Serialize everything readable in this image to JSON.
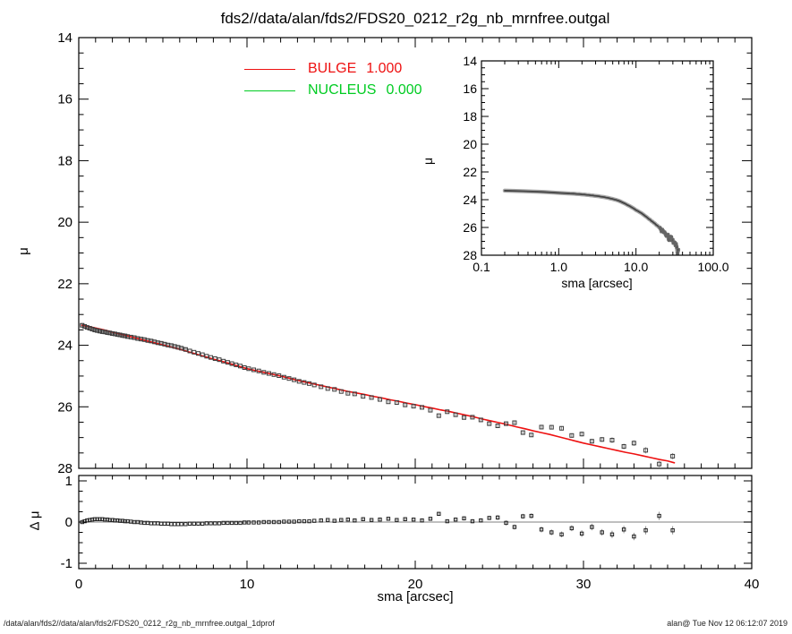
{
  "title": "fds2//data/alan/fds2/FDS20_0212_r2g_nb_mrnfree.outgal",
  "footer": {
    "left": "/data/alan/fds2//data/alan/fds2/FDS20_0212_r2g_nb_mrnfree.outgal_1dprof",
    "right": "alan@  Tue Nov 12 06:12:07 2019"
  },
  "colors": {
    "bulge_line": "#ee1111",
    "nucleus_line": "#00cc22",
    "data_marker": "#3c3c3c",
    "error_bar": "#8f8f8f",
    "fuzz_band": "#b5b5b5",
    "inset_core": "#444444",
    "zero_line": "#999999",
    "axis": "#000000"
  },
  "legend": [
    {
      "label": "BULGE",
      "value": "1.000",
      "color": "#ee1111"
    },
    {
      "label": "NUCLEUS",
      "value": "0.000",
      "color": "#00cc22"
    }
  ],
  "chart_data": {
    "type": "scatter",
    "panels": [
      {
        "id": "main",
        "ylabel": "μ",
        "xlim": [
          0,
          40
        ],
        "ylim": [
          28,
          14
        ],
        "yticks": [
          14,
          16,
          18,
          20,
          22,
          24,
          26,
          28
        ],
        "y_minor": 0.5,
        "xticks": [
          0,
          10,
          20,
          30,
          40
        ],
        "x_minor": 1,
        "grid": false
      },
      {
        "id": "inset",
        "xlabel": "sma [arcsec]",
        "ylabel": "μ",
        "xscale": "log",
        "xlim": [
          0.1,
          100
        ],
        "ylim": [
          28,
          14
        ],
        "xticks": [
          {
            "v": 0.1,
            "label": "0.1"
          },
          {
            "v": 1,
            "label": "1.0"
          },
          {
            "v": 10,
            "label": "10.0"
          },
          {
            "v": 100,
            "label": "100.0"
          }
        ],
        "yticks": [
          14,
          16,
          18,
          20,
          22,
          24,
          26,
          28
        ],
        "y_minor": 0.5,
        "grid": false
      },
      {
        "id": "residual",
        "xlabel": "sma [arcsec]",
        "ylabel": "Δ μ",
        "xlim": [
          0,
          40
        ],
        "ylim": [
          -1.13,
          1.13
        ],
        "yticks": [
          1,
          0,
          -1
        ],
        "y_minor": 0.25,
        "xticks": [
          0,
          10,
          20,
          30,
          40
        ],
        "x_minor": 1,
        "grid": false
      }
    ],
    "series": {
      "bulge_model": [
        [
          0.2,
          23.35
        ],
        [
          0.6,
          23.39
        ],
        [
          1.0,
          23.44
        ],
        [
          1.5,
          23.5
        ],
        [
          2.0,
          23.57
        ],
        [
          2.5,
          23.64
        ],
        [
          3.0,
          23.71
        ],
        [
          3.5,
          23.78
        ],
        [
          4.0,
          23.85
        ],
        [
          4.5,
          23.92
        ],
        [
          5.0,
          23.99
        ],
        [
          5.5,
          24.06
        ],
        [
          6.0,
          24.13
        ],
        [
          6.5,
          24.21
        ],
        [
          7.0,
          24.29
        ],
        [
          7.5,
          24.37
        ],
        [
          8.0,
          24.45
        ],
        [
          8.5,
          24.52
        ],
        [
          9.0,
          24.6
        ],
        [
          9.5,
          24.68
        ],
        [
          10.0,
          24.76
        ],
        [
          10.5,
          24.82
        ],
        [
          11.0,
          24.88
        ],
        [
          11.5,
          24.94
        ],
        [
          12.0,
          25.0
        ],
        [
          12.5,
          25.07
        ],
        [
          13.0,
          25.14
        ],
        [
          13.5,
          25.2
        ],
        [
          14.0,
          25.26
        ],
        [
          14.5,
          25.32
        ],
        [
          15.0,
          25.38
        ],
        [
          15.5,
          25.44
        ],
        [
          16.0,
          25.5
        ],
        [
          16.5,
          25.55
        ],
        [
          17.0,
          25.6
        ],
        [
          17.5,
          25.66
        ],
        [
          18.0,
          25.71
        ],
        [
          18.5,
          25.77
        ],
        [
          19.0,
          25.82
        ],
        [
          19.5,
          25.88
        ],
        [
          20.0,
          25.93
        ],
        [
          20.5,
          25.99
        ],
        [
          21.0,
          26.04
        ],
        [
          21.5,
          26.1
        ],
        [
          22.0,
          26.15
        ],
        [
          22.5,
          26.21
        ],
        [
          23.0,
          26.27
        ],
        [
          23.5,
          26.33
        ],
        [
          24.0,
          26.4
        ],
        [
          24.5,
          26.46
        ],
        [
          25.0,
          26.52
        ],
        [
          25.5,
          26.58
        ],
        [
          26.0,
          26.65
        ],
        [
          26.5,
          26.71
        ],
        [
          27.0,
          26.78
        ],
        [
          27.5,
          26.84
        ],
        [
          28.0,
          26.9
        ],
        [
          28.5,
          26.97
        ],
        [
          29.0,
          27.04
        ],
        [
          29.5,
          27.11
        ],
        [
          30.0,
          27.18
        ],
        [
          30.5,
          27.24
        ],
        [
          31.0,
          27.3
        ],
        [
          31.5,
          27.36
        ],
        [
          32.0,
          27.42
        ],
        [
          32.5,
          27.48
        ],
        [
          33.0,
          27.53
        ],
        [
          33.5,
          27.59
        ],
        [
          34.0,
          27.65
        ],
        [
          34.5,
          27.71
        ],
        [
          35.0,
          27.76
        ],
        [
          35.4,
          27.82
        ]
      ],
      "galaxy_points": [
        [
          0.2,
          0.0
        ],
        [
          0.35,
          0.02
        ],
        [
          0.5,
          0.04
        ],
        [
          0.65,
          0.05
        ],
        [
          0.8,
          0.06
        ],
        [
          0.95,
          0.07
        ],
        [
          1.1,
          0.07
        ],
        [
          1.25,
          0.07
        ],
        [
          1.4,
          0.07
        ],
        [
          1.55,
          0.06
        ],
        [
          1.7,
          0.06
        ],
        [
          1.85,
          0.05
        ],
        [
          2.0,
          0.05
        ],
        [
          2.15,
          0.04
        ],
        [
          2.3,
          0.04
        ],
        [
          2.45,
          0.03
        ],
        [
          2.6,
          0.03
        ],
        [
          2.75,
          0.02
        ],
        [
          2.9,
          0.02
        ],
        [
          3.1,
          0.01
        ],
        [
          3.3,
          0.0
        ],
        [
          3.5,
          0.0
        ],
        [
          3.7,
          -0.01
        ],
        [
          3.9,
          -0.02
        ],
        [
          4.1,
          -0.02
        ],
        [
          4.3,
          -0.03
        ],
        [
          4.5,
          -0.03
        ],
        [
          4.7,
          -0.03
        ],
        [
          4.9,
          -0.04
        ],
        [
          5.1,
          -0.04
        ],
        [
          5.3,
          -0.04
        ],
        [
          5.5,
          -0.05
        ],
        [
          5.7,
          -0.05
        ],
        [
          5.9,
          -0.05
        ],
        [
          6.1,
          -0.05
        ],
        [
          6.35,
          -0.05
        ],
        [
          6.6,
          -0.04
        ],
        [
          6.85,
          -0.04
        ],
        [
          7.1,
          -0.04
        ],
        [
          7.35,
          -0.04
        ],
        [
          7.6,
          -0.03
        ],
        [
          7.85,
          -0.03
        ],
        [
          8.1,
          -0.03
        ],
        [
          8.35,
          -0.03
        ],
        [
          8.6,
          -0.02
        ],
        [
          8.85,
          -0.02
        ],
        [
          9.1,
          -0.02
        ],
        [
          9.35,
          -0.02
        ],
        [
          9.6,
          -0.02
        ],
        [
          9.85,
          -0.01
        ],
        [
          10.1,
          -0.01
        ],
        [
          10.4,
          -0.01
        ],
        [
          10.7,
          -0.01
        ],
        [
          11.0,
          0.0
        ],
        [
          11.3,
          0.0
        ],
        [
          11.6,
          0.0
        ],
        [
          11.9,
          0.0
        ],
        [
          12.2,
          0.01
        ],
        [
          12.5,
          0.01
        ],
        [
          12.8,
          0.01
        ],
        [
          13.1,
          0.02
        ],
        [
          13.4,
          0.02
        ],
        [
          13.7,
          0.02
        ],
        [
          14.0,
          0.03
        ],
        [
          14.4,
          0.04,
          0.02
        ],
        [
          14.8,
          0.05,
          0.02
        ],
        [
          15.2,
          0.03,
          0.02
        ],
        [
          15.6,
          0.05,
          0.02
        ],
        [
          16.0,
          0.06,
          0.03
        ],
        [
          16.4,
          0.04,
          0.03
        ],
        [
          16.9,
          0.07,
          0.03
        ],
        [
          17.4,
          0.05,
          0.03
        ],
        [
          17.9,
          0.06,
          0.03
        ],
        [
          18.4,
          0.08,
          0.03
        ],
        [
          18.9,
          0.05,
          0.03
        ],
        [
          19.4,
          0.07,
          0.04
        ],
        [
          19.9,
          0.06,
          0.04
        ],
        [
          20.4,
          0.04,
          0.04
        ],
        [
          20.9,
          0.08,
          0.04
        ],
        [
          21.4,
          0.2,
          0.04
        ],
        [
          21.9,
          0.02,
          0.04
        ],
        [
          22.4,
          0.06,
          0.05
        ],
        [
          22.9,
          0.09,
          0.05
        ],
        [
          23.4,
          0.02,
          0.05
        ],
        [
          23.9,
          0.04,
          0.05
        ],
        [
          24.4,
          0.1,
          0.05
        ],
        [
          24.9,
          0.11,
          0.06
        ],
        [
          25.4,
          -0.02,
          0.06
        ],
        [
          25.9,
          -0.12,
          0.06
        ],
        [
          26.4,
          0.14,
          0.06
        ],
        [
          26.9,
          0.15,
          0.06
        ],
        [
          27.5,
          -0.18,
          0.07
        ],
        [
          28.1,
          -0.25,
          0.07
        ],
        [
          28.7,
          -0.3,
          0.07
        ],
        [
          29.3,
          -0.15,
          0.07
        ],
        [
          29.9,
          -0.28,
          0.08
        ],
        [
          30.5,
          -0.12,
          0.08
        ],
        [
          31.1,
          -0.25,
          0.08
        ],
        [
          31.7,
          -0.3,
          0.09
        ],
        [
          32.4,
          -0.18,
          0.09
        ],
        [
          33.0,
          -0.35,
          0.09
        ],
        [
          33.7,
          -0.2,
          0.1
        ],
        [
          34.5,
          0.15,
          0.1
        ],
        [
          35.3,
          -0.2,
          0.1
        ]
      ],
      "notes": "galaxy_points rows are [sma_arcsec, delta_mu_vs_bulge_model, err]; data mu = model(sma) + delta. bulge_model rows are [sma_arcsec, mu]."
    }
  }
}
